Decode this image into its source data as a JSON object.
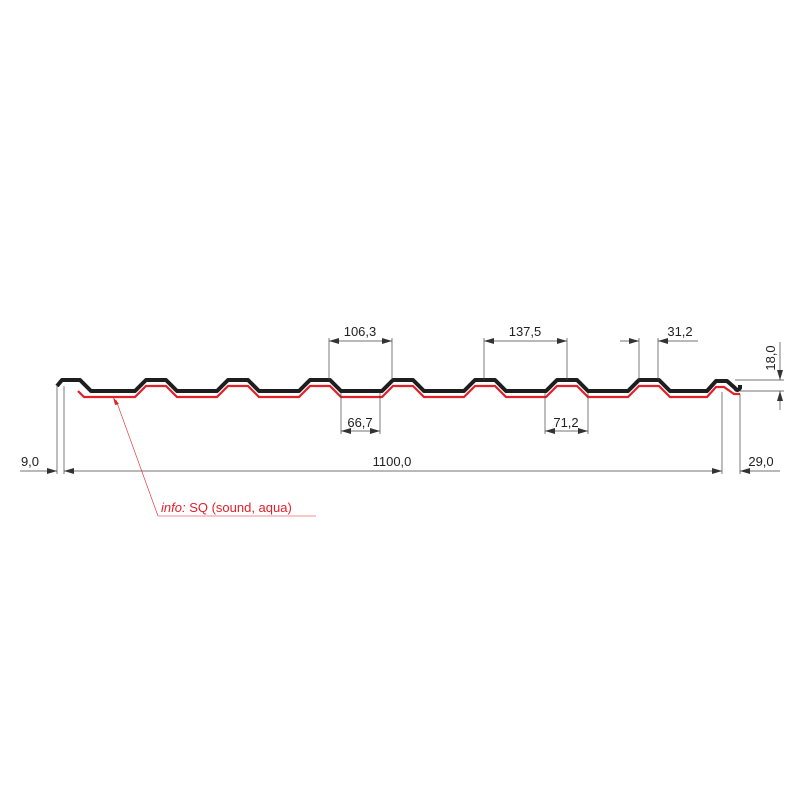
{
  "dimensions": {
    "rib_spacing_top": "106,3",
    "valley_width": "66,7",
    "rib_spacing_b": "137,5",
    "valley_width_b": "71,2",
    "rib_top_width": "31,2",
    "profile_height": "18,0",
    "left_edge": "9,0",
    "total_width": "1100,0",
    "right_edge": "29,0"
  },
  "annotation": {
    "label": "info:",
    "text": " SQ (sound, aqua)"
  },
  "colors": {
    "profile": "#1e1e1e",
    "felt_layer": "#e2202a",
    "dimension": "#444444"
  }
}
